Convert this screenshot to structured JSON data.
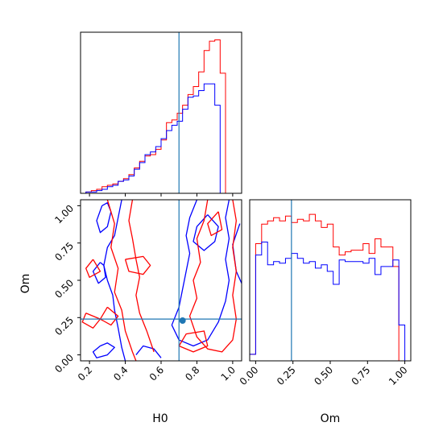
{
  "chart_data": {
    "type": "corner",
    "params": [
      "H0",
      "Om"
    ],
    "truth": {
      "H0": 0.7,
      "Om": 0.24
    },
    "colors": {
      "series_a": "#ff0000",
      "series_b": "#0000ff",
      "truth": "#1f77b4"
    },
    "axes": {
      "H0": {
        "label": "H0",
        "lim": [
          0.15,
          1.05
        ],
        "ticks": [
          0.2,
          0.4,
          0.6,
          0.8,
          1.0
        ],
        "tick_labels": [
          "0.2",
          "0.4",
          "0.6",
          "0.8",
          "1.0"
        ]
      },
      "Om": {
        "label": "Om",
        "lim": [
          -0.04,
          1.04
        ],
        "ticks": [
          0.0,
          0.25,
          0.5,
          0.75,
          1.0
        ],
        "tick_labels": [
          "0.00",
          "0.25",
          "0.50",
          "0.75",
          "1.00"
        ]
      }
    },
    "hist_H0": {
      "bin_edges": [
        0.15,
        0.18,
        0.21,
        0.24,
        0.27,
        0.3,
        0.33,
        0.36,
        0.39,
        0.42,
        0.45,
        0.48,
        0.51,
        0.54,
        0.57,
        0.6,
        0.63,
        0.66,
        0.69,
        0.72,
        0.75,
        0.78,
        0.81,
        0.84,
        0.87,
        0.9,
        0.93,
        0.96,
        0.99,
        1.02,
        1.05
      ],
      "series_a": [
        0,
        1,
        2,
        3,
        5,
        6,
        7,
        9,
        11,
        14,
        19,
        24,
        28,
        29,
        33,
        40,
        53,
        55,
        60,
        66,
        74,
        80,
        91,
        107,
        114,
        115,
        90,
        0,
        0,
        0
      ],
      "series_b": [
        0,
        1,
        1,
        2,
        3,
        5,
        6,
        9,
        10,
        13,
        18,
        23,
        29,
        31,
        35,
        41,
        47,
        51,
        54,
        63,
        72,
        73,
        77,
        82,
        82,
        66,
        0,
        0,
        0,
        0
      ]
    },
    "hist_Om": {
      "bin_edges": [
        -0.04,
        0.0,
        0.04,
        0.08,
        0.12,
        0.16,
        0.2,
        0.24,
        0.28,
        0.32,
        0.36,
        0.4,
        0.44,
        0.48,
        0.52,
        0.56,
        0.6,
        0.64,
        0.68,
        0.72,
        0.76,
        0.8,
        0.84,
        0.88,
        0.92,
        0.96,
        1.0
      ],
      "series_a": [
        4,
        72,
        84,
        86,
        88,
        86,
        89,
        85,
        87,
        86,
        90,
        86,
        82,
        84,
        70,
        65,
        67,
        68,
        68,
        72,
        66,
        75,
        70,
        70,
        58,
        0
      ],
      "series_b": [
        4,
        65,
        73,
        59,
        61,
        60,
        63,
        66,
        63,
        60,
        61,
        57,
        59,
        55,
        47,
        62,
        61,
        61,
        61,
        60,
        63,
        53,
        58,
        58,
        62,
        22
      ]
    },
    "scatter_point": {
      "x": 0.72,
      "y": 0.23
    }
  }
}
